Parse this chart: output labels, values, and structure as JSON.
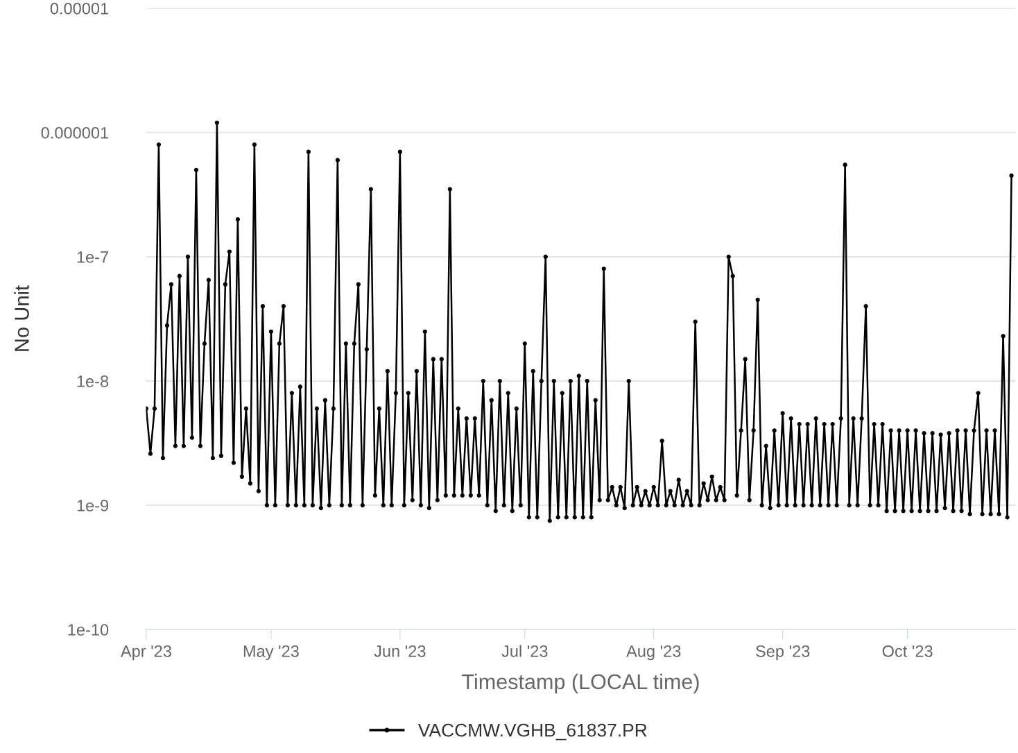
{
  "chart_data": {
    "type": "line",
    "xlabel": "Timestamp (LOCAL time)",
    "ylabel": "No Unit",
    "log": "y",
    "grid": "y",
    "legend": "bottom",
    "marker": "circle",
    "line_style": "solid",
    "xlim": [
      "2023-03-31T20:00",
      "2023-10-27T02:00"
    ],
    "xticks": [
      {
        "value": "2023-04-01",
        "label": "Apr '23"
      },
      {
        "value": "2023-05-01",
        "label": "May '23"
      },
      {
        "value": "2023-06-01",
        "label": "Jun '23"
      },
      {
        "value": "2023-07-01",
        "label": "Jul '23"
      },
      {
        "value": "2023-08-01",
        "label": "Aug '23"
      },
      {
        "value": "2023-09-01",
        "label": "Sep '23"
      },
      {
        "value": "2023-10-01",
        "label": "Oct '23"
      }
    ],
    "ylim": [
      1e-10,
      1e-05
    ],
    "yticks": [
      {
        "value": 1e-10,
        "label": "1e-10"
      },
      {
        "value": 1e-09,
        "label": "1e-9"
      },
      {
        "value": 1e-08,
        "label": "1e-8"
      },
      {
        "value": 1e-07,
        "label": "1e-7"
      },
      {
        "value": 1e-06,
        "label": "0.000001"
      },
      {
        "value": 1e-05,
        "label": "0.00001"
      }
    ],
    "series": [
      {
        "name": "VACCMW.VGHB_61837.PR",
        "color": "#000000",
        "x": [
          "2023-04-01",
          "2023-04-02",
          "2023-04-03",
          "2023-04-04",
          "2023-04-05",
          "2023-04-06",
          "2023-04-07",
          "2023-04-08",
          "2023-04-09",
          "2023-04-10",
          "2023-04-11",
          "2023-04-12",
          "2023-04-13",
          "2023-04-14",
          "2023-04-15",
          "2023-04-16",
          "2023-04-17",
          "2023-04-18",
          "2023-04-19",
          "2023-04-20",
          "2023-04-21",
          "2023-04-22",
          "2023-04-23",
          "2023-04-24",
          "2023-04-25",
          "2023-04-26",
          "2023-04-27",
          "2023-04-28",
          "2023-04-29",
          "2023-04-30",
          "2023-05-01",
          "2023-05-02",
          "2023-05-03",
          "2023-05-04",
          "2023-05-05",
          "2023-05-06",
          "2023-05-07",
          "2023-05-08",
          "2023-05-09",
          "2023-05-10",
          "2023-05-11",
          "2023-05-12",
          "2023-05-13",
          "2023-05-14",
          "2023-05-15",
          "2023-05-16",
          "2023-05-17",
          "2023-05-18",
          "2023-05-19",
          "2023-05-20",
          "2023-05-21",
          "2023-05-22",
          "2023-05-23",
          "2023-05-24",
          "2023-05-25",
          "2023-05-26",
          "2023-05-27",
          "2023-05-28",
          "2023-05-29",
          "2023-05-30",
          "2023-05-31",
          "2023-06-01",
          "2023-06-02",
          "2023-06-03",
          "2023-06-04",
          "2023-06-05",
          "2023-06-06",
          "2023-06-07",
          "2023-06-08",
          "2023-06-09",
          "2023-06-10",
          "2023-06-11",
          "2023-06-12",
          "2023-06-13",
          "2023-06-14",
          "2023-06-15",
          "2023-06-16",
          "2023-06-17",
          "2023-06-18",
          "2023-06-19",
          "2023-06-20",
          "2023-06-21",
          "2023-06-22",
          "2023-06-23",
          "2023-06-24",
          "2023-06-25",
          "2023-06-26",
          "2023-06-27",
          "2023-06-28",
          "2023-06-29",
          "2023-06-30",
          "2023-07-01",
          "2023-07-02",
          "2023-07-03",
          "2023-07-04",
          "2023-07-05",
          "2023-07-06",
          "2023-07-07",
          "2023-07-08",
          "2023-07-09",
          "2023-07-10",
          "2023-07-11",
          "2023-07-12",
          "2023-07-13",
          "2023-07-14",
          "2023-07-15",
          "2023-07-16",
          "2023-07-17",
          "2023-07-18",
          "2023-07-19",
          "2023-07-20",
          "2023-07-21",
          "2023-07-22",
          "2023-07-23",
          "2023-07-24",
          "2023-07-25",
          "2023-07-26",
          "2023-07-27",
          "2023-07-28",
          "2023-07-29",
          "2023-07-30",
          "2023-07-31",
          "2023-08-01",
          "2023-08-02",
          "2023-08-03",
          "2023-08-04",
          "2023-08-05",
          "2023-08-06",
          "2023-08-07",
          "2023-08-08",
          "2023-08-09",
          "2023-08-10",
          "2023-08-11",
          "2023-08-12",
          "2023-08-13",
          "2023-08-14",
          "2023-08-15",
          "2023-08-16",
          "2023-08-17",
          "2023-08-18",
          "2023-08-19",
          "2023-08-20",
          "2023-08-21",
          "2023-08-22",
          "2023-08-23",
          "2023-08-24",
          "2023-08-25",
          "2023-08-26",
          "2023-08-27",
          "2023-08-28",
          "2023-08-29",
          "2023-08-30",
          "2023-08-31",
          "2023-09-01",
          "2023-09-02",
          "2023-09-03",
          "2023-09-04",
          "2023-09-05",
          "2023-09-06",
          "2023-09-07",
          "2023-09-08",
          "2023-09-09",
          "2023-09-10",
          "2023-09-11",
          "2023-09-12",
          "2023-09-13",
          "2023-09-14",
          "2023-09-15",
          "2023-09-16",
          "2023-09-17",
          "2023-09-18",
          "2023-09-19",
          "2023-09-20",
          "2023-09-21",
          "2023-09-22",
          "2023-09-23",
          "2023-09-24",
          "2023-09-25",
          "2023-09-26",
          "2023-09-27",
          "2023-09-28",
          "2023-09-29",
          "2023-09-30",
          "2023-10-01",
          "2023-10-02",
          "2023-10-03",
          "2023-10-04",
          "2023-10-05",
          "2023-10-06",
          "2023-10-07",
          "2023-10-08",
          "2023-10-09",
          "2023-10-10",
          "2023-10-11",
          "2023-10-12",
          "2023-10-13",
          "2023-10-14",
          "2023-10-15",
          "2023-10-16",
          "2023-10-17",
          "2023-10-18",
          "2023-10-19",
          "2023-10-20",
          "2023-10-21",
          "2023-10-22",
          "2023-10-23",
          "2023-10-24",
          "2023-10-25",
          "2023-10-26"
        ],
        "values": [
          6e-09,
          2.6e-09,
          6e-09,
          8e-07,
          2.4e-09,
          2.8e-08,
          6e-08,
          3e-09,
          7e-08,
          3e-09,
          1e-07,
          3.5e-09,
          5e-07,
          3e-09,
          2e-08,
          6.5e-08,
          2.4e-09,
          1.2e-06,
          2.5e-09,
          6e-08,
          1.1e-07,
          2.2e-09,
          2e-07,
          1.7e-09,
          6e-09,
          1.5e-09,
          8e-07,
          1.3e-09,
          4e-08,
          1e-09,
          2.5e-08,
          1e-09,
          2e-08,
          4e-08,
          1e-09,
          8e-09,
          1e-09,
          9e-09,
          1e-09,
          7e-07,
          1e-09,
          6e-09,
          9.5e-10,
          7e-09,
          1e-09,
          6e-09,
          6e-07,
          1e-09,
          2e-08,
          1e-09,
          2e-08,
          6e-08,
          1e-09,
          1.8e-08,
          3.5e-07,
          1.2e-09,
          6e-09,
          1e-09,
          1.2e-08,
          1e-09,
          8e-09,
          7e-07,
          1e-09,
          8e-09,
          1.1e-09,
          1.2e-08,
          1e-09,
          2.5e-08,
          9.5e-10,
          1.5e-08,
          1.1e-09,
          1.5e-08,
          1.2e-09,
          3.5e-07,
          1.2e-09,
          6e-09,
          1.2e-09,
          5e-09,
          1.2e-09,
          5e-09,
          1.2e-09,
          1e-08,
          1e-09,
          7e-09,
          9e-10,
          1e-08,
          1e-09,
          8e-09,
          9e-10,
          6e-09,
          1e-09,
          2e-08,
          8e-10,
          1.2e-08,
          8e-10,
          1e-08,
          1e-07,
          7.5e-10,
          1e-08,
          8e-10,
          8e-09,
          8e-10,
          1e-08,
          8e-10,
          1.1e-08,
          8e-10,
          1e-08,
          8e-10,
          7e-09,
          1.1e-09,
          8e-08,
          1.1e-09,
          1.4e-09,
          1e-09,
          1.4e-09,
          9.5e-10,
          1e-08,
          1e-09,
          1.4e-09,
          1e-09,
          1.3e-09,
          1e-09,
          1.4e-09,
          1e-09,
          3.3e-09,
          1e-09,
          1.3e-09,
          1e-09,
          1.6e-09,
          1e-09,
          1.3e-09,
          1e-09,
          3e-08,
          1e-09,
          1.5e-09,
          1.1e-09,
          1.7e-09,
          1.1e-09,
          1.4e-09,
          1.1e-09,
          1e-07,
          7e-08,
          1.2e-09,
          4e-09,
          1.5e-08,
          1.1e-09,
          4e-09,
          4.5e-08,
          1e-09,
          3e-09,
          9.5e-10,
          4e-09,
          1e-09,
          5.5e-09,
          1e-09,
          5e-09,
          1e-09,
          4.5e-09,
          1e-09,
          4.5e-09,
          1e-09,
          5e-09,
          1e-09,
          4.5e-09,
          1e-09,
          4.5e-09,
          1e-09,
          5e-09,
          5.5e-07,
          1e-09,
          5e-09,
          1e-09,
          5e-09,
          4e-08,
          1e-09,
          4.5e-09,
          1e-09,
          4.5e-09,
          9e-10,
          4e-09,
          9e-10,
          4e-09,
          9e-10,
          4e-09,
          9e-10,
          4e-09,
          9e-10,
          3.8e-09,
          9e-10,
          3.8e-09,
          9e-10,
          3.7e-09,
          9.5e-10,
          3.8e-09,
          9e-10,
          4e-09,
          9e-10,
          4e-09,
          8.5e-10,
          4e-09,
          8e-09,
          8.5e-10,
          4e-09,
          8.5e-10,
          4e-09,
          8.5e-10,
          2.3e-08,
          8e-10,
          4.5e-07
        ]
      }
    ]
  }
}
